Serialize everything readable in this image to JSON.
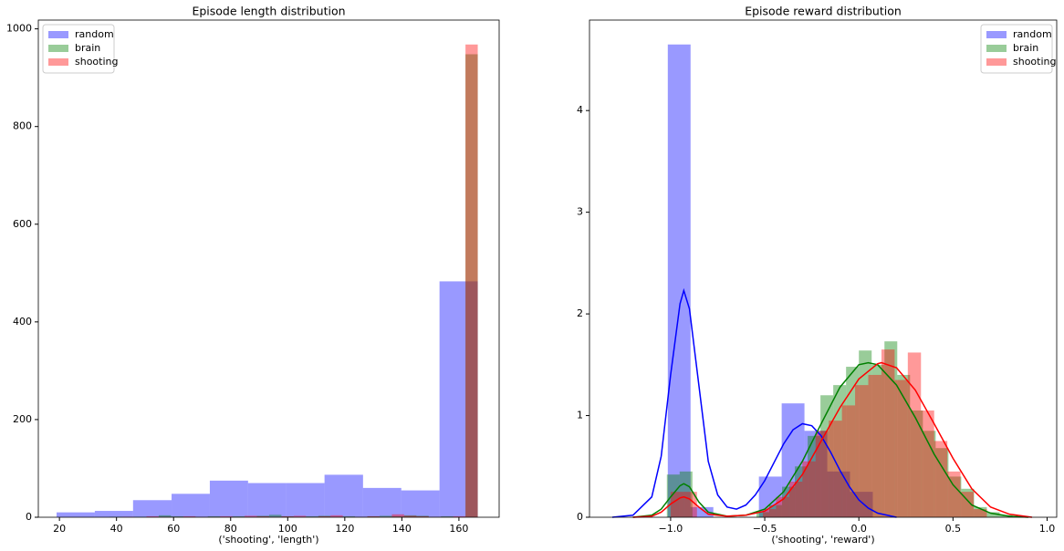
{
  "chart_data": [
    {
      "type": "histogram",
      "title": "Episode length distribution",
      "x_label": "('shooting', 'length')",
      "xlim": [
        12.6,
        174.1
      ],
      "ylim": [
        0,
        1018
      ],
      "xticks": [
        20,
        40,
        60,
        80,
        100,
        120,
        140,
        160
      ],
      "yticks": [
        0,
        200,
        400,
        600,
        800,
        1000
      ],
      "legend": "upper left",
      "alpha": 0.4,
      "series": [
        {
          "name": "random",
          "color": "blue",
          "bins": [
            19.0,
            32.4,
            45.8,
            59.3,
            72.7,
            86.1,
            99.5,
            112.9,
            126.4,
            139.8,
            153.2,
            166.6
          ],
          "values": [
            10,
            13,
            35,
            48,
            75,
            70,
            70,
            87,
            60,
            55,
            483
          ]
        },
        {
          "name": "brain",
          "color": "green",
          "bins": [
            37.6,
            41.9,
            46.2,
            50.5,
            54.8,
            59.1,
            63.4,
            67.7,
            72.0,
            76.3,
            80.6,
            84.9,
            89.2,
            93.5,
            97.8,
            102.1,
            106.4,
            110.7,
            115.0,
            119.3,
            123.6,
            127.9,
            132.2,
            136.5,
            140.8,
            145.1,
            149.4,
            153.7,
            158.0,
            162.3,
            166.6
          ],
          "values": [
            1,
            0,
            1,
            0,
            4,
            2,
            1,
            1,
            2,
            1,
            2,
            1,
            3,
            5,
            2,
            1,
            2,
            3,
            1,
            2,
            1,
            2,
            3,
            2,
            4,
            3,
            1,
            2,
            1,
            948
          ]
        },
        {
          "name": "shooting",
          "color": "red",
          "bins": [
            37.6,
            41.9,
            46.2,
            50.5,
            54.8,
            59.1,
            63.4,
            67.7,
            72.0,
            76.3,
            80.6,
            84.9,
            89.2,
            93.5,
            97.8,
            102.1,
            106.4,
            110.7,
            115.0,
            119.3,
            123.6,
            127.9,
            132.2,
            136.5,
            140.8,
            145.1,
            149.4,
            153.7,
            158.0,
            162.3,
            166.6
          ],
          "values": [
            0,
            1,
            0,
            2,
            1,
            1,
            2,
            1,
            1,
            2,
            1,
            3,
            2,
            1,
            2,
            3,
            1,
            2,
            4,
            1,
            1,
            2,
            1,
            6,
            3,
            2,
            1,
            1,
            2,
            968
          ]
        }
      ]
    },
    {
      "type": "histogram",
      "title": "Episode reward distribution",
      "x_label": "('shooting', 'reward')",
      "xlim": [
        -1.431,
        1.051
      ],
      "ylim": [
        0,
        4.89
      ],
      "xticks": [
        {
          "value": -1.0,
          "label": "−1.0"
        },
        {
          "value": -0.5,
          "label": "−0.5"
        },
        {
          "value": 0.0,
          "label": "0.0"
        },
        {
          "value": 0.5,
          "label": "0.5"
        },
        {
          "value": 1.0,
          "label": "1.0"
        }
      ],
      "yticks": [
        0,
        1,
        2,
        3,
        4
      ],
      "legend": "upper right",
      "alpha": 0.4,
      "series": [
        {
          "name": "random",
          "color": "blue",
          "bins": [
            -1.015,
            -0.894,
            -0.773,
            -0.652,
            -0.531,
            -0.41,
            -0.289,
            -0.168,
            -0.047,
            0.074
          ],
          "values": [
            4.65,
            0.1,
            0,
            0,
            0.4,
            1.12,
            0.85,
            0.45,
            0.25
          ],
          "kde": {
            "x": [
              -1.31,
              -1.2,
              -1.1,
              -1.05,
              -1.0,
              -0.95,
              -0.93,
              -0.9,
              -0.85,
              -0.8,
              -0.75,
              -0.7,
              -0.65,
              -0.6,
              -0.55,
              -0.5,
              -0.45,
              -0.4,
              -0.35,
              -0.3,
              -0.25,
              -0.2,
              -0.15,
              -0.1,
              -0.05,
              0.0,
              0.05,
              0.1,
              0.2
            ],
            "y": [
              0,
              0.02,
              0.2,
              0.6,
              1.4,
              2.1,
              2.23,
              2.05,
              1.3,
              0.55,
              0.22,
              0.1,
              0.08,
              0.12,
              0.22,
              0.36,
              0.54,
              0.72,
              0.86,
              0.92,
              0.9,
              0.8,
              0.64,
              0.46,
              0.3,
              0.17,
              0.09,
              0.04,
              0.0
            ]
          }
        },
        {
          "name": "brain",
          "color": "green",
          "bins": [
            -1.02,
            -0.952,
            -0.884,
            -0.816,
            -0.748,
            -0.68,
            -0.612,
            -0.544,
            -0.476,
            -0.408,
            -0.34,
            -0.272,
            -0.204,
            -0.136,
            -0.068,
            0.0,
            0.068,
            0.136,
            0.204,
            0.272,
            0.34,
            0.408,
            0.476,
            0.544,
            0.612,
            0.68,
            0.748,
            0.816
          ],
          "values": [
            0.42,
            0.45,
            0,
            0,
            0,
            0,
            0,
            0.05,
            0.12,
            0.3,
            0.5,
            0.8,
            1.2,
            1.3,
            1.48,
            1.64,
            1.5,
            1.73,
            1.4,
            1.05,
            0.85,
            0.68,
            0.4,
            0.28,
            0.1,
            0.05,
            0.02
          ],
          "kde": {
            "x": [
              -1.2,
              -1.1,
              -1.05,
              -1.0,
              -0.95,
              -0.93,
              -0.9,
              -0.85,
              -0.8,
              -0.7,
              -0.6,
              -0.5,
              -0.4,
              -0.3,
              -0.2,
              -0.1,
              0.0,
              0.05,
              0.1,
              0.2,
              0.3,
              0.4,
              0.5,
              0.6,
              0.7,
              0.8,
              0.9
            ],
            "y": [
              0,
              0.02,
              0.08,
              0.2,
              0.31,
              0.33,
              0.3,
              0.15,
              0.05,
              0.01,
              0.02,
              0.08,
              0.25,
              0.55,
              0.92,
              1.28,
              1.5,
              1.52,
              1.5,
              1.3,
              0.98,
              0.62,
              0.32,
              0.12,
              0.04,
              0.01,
              0
            ]
          }
        },
        {
          "name": "shooting",
          "color": "red",
          "bins": [
            -1.0,
            -0.93,
            -0.86,
            -0.79,
            -0.72,
            -0.65,
            -0.58,
            -0.51,
            -0.44,
            -0.37,
            -0.3,
            -0.23,
            -0.16,
            -0.09,
            -0.02,
            0.05,
            0.12,
            0.19,
            0.26,
            0.33,
            0.4,
            0.47,
            0.54,
            0.61,
            0.68
          ],
          "values": [
            0.25,
            0.25,
            0,
            0,
            0,
            0,
            0,
            0.08,
            0.2,
            0.35,
            0.55,
            0.85,
            0.95,
            1.1,
            1.3,
            1.4,
            1.65,
            1.35,
            1.62,
            1.05,
            0.75,
            0.45,
            0.25,
            0.08
          ],
          "kde": {
            "x": [
              -1.2,
              -1.1,
              -1.05,
              -1.0,
              -0.95,
              -0.93,
              -0.9,
              -0.85,
              -0.8,
              -0.7,
              -0.6,
              -0.5,
              -0.4,
              -0.3,
              -0.2,
              -0.1,
              0.0,
              0.1,
              0.12,
              0.2,
              0.3,
              0.4,
              0.5,
              0.6,
              0.7,
              0.8,
              0.92
            ],
            "y": [
              0,
              0.01,
              0.05,
              0.13,
              0.19,
              0.2,
              0.18,
              0.1,
              0.03,
              0.01,
              0.02,
              0.06,
              0.18,
              0.42,
              0.75,
              1.08,
              1.36,
              1.51,
              1.52,
              1.47,
              1.25,
              0.92,
              0.58,
              0.28,
              0.1,
              0.03,
              0
            ]
          }
        }
      ]
    }
  ]
}
